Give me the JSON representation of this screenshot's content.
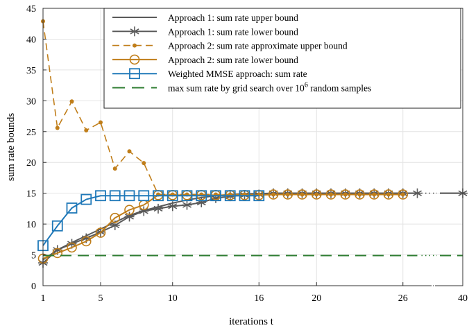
{
  "chart_data": {
    "type": "line",
    "xlabel": "iterations t",
    "ylabel": "sum rate bounds",
    "ylim": [
      0,
      45
    ],
    "yticks": [
      0,
      5,
      10,
      15,
      20,
      25,
      30,
      35,
      40,
      45
    ],
    "xtick_labels": [
      "1",
      "5",
      "10",
      "16",
      "20",
      "26",
      "40"
    ],
    "x_break": {
      "shown_between": 27,
      "and": 40
    },
    "grid": true,
    "legend_position": "top-right",
    "series": [
      {
        "name": "Approach 1: sum rate upper bound",
        "color": "#5a5a5a",
        "dash": "solid",
        "marker": "none",
        "x": [
          1,
          2,
          3,
          4,
          5,
          6,
          7,
          8,
          9,
          10,
          11,
          12,
          13,
          14,
          15,
          16,
          17,
          18,
          19,
          20,
          21,
          22,
          23,
          24,
          25,
          26,
          27
        ],
        "y": [
          4.2,
          5.8,
          7.0,
          8.1,
          9.2,
          10.3,
          11.4,
          12.2,
          12.8,
          13.4,
          13.9,
          14.3,
          14.6,
          14.8,
          14.9,
          14.95,
          15.0,
          15.0,
          15.0,
          15.0,
          15.0,
          15.0,
          15.0,
          15.0,
          15.0,
          15.0,
          15.0
        ],
        "x_after_break": [
          40
        ],
        "y_after_break": [
          15.0
        ]
      },
      {
        "name": "Approach 1: sum rate lower bound",
        "color": "#5a5a5a",
        "dash": "solid",
        "marker": "asterisk",
        "x": [
          1,
          2,
          3,
          4,
          5,
          6,
          7,
          8,
          9,
          10,
          11,
          12,
          13,
          14,
          15,
          16,
          17,
          18,
          19,
          20,
          21,
          22,
          23,
          24,
          25,
          26,
          27
        ],
        "y": [
          3.7,
          5.8,
          6.8,
          7.7,
          8.7,
          9.8,
          11.2,
          12.1,
          12.5,
          12.9,
          13.1,
          13.5,
          14.2,
          14.5,
          14.7,
          14.8,
          15.0,
          15.0,
          15.0,
          15.0,
          15.0,
          15.0,
          15.0,
          15.0,
          15.0,
          15.0,
          15.0
        ],
        "x_after_break": [
          40
        ],
        "y_after_break": [
          15.0
        ]
      },
      {
        "name": "Approach 2: sum rate approximate upper bound",
        "color": "#c07e1a",
        "dash": "dashed",
        "marker": "dot",
        "x": [
          1,
          2,
          3,
          4,
          5,
          6,
          7,
          8,
          9,
          10,
          11,
          12,
          13,
          14,
          15,
          16,
          17,
          18,
          19,
          20,
          21,
          22,
          23,
          24,
          25,
          26
        ],
        "y": [
          42.9,
          25.6,
          29.9,
          25.2,
          26.5,
          19.0,
          21.8,
          19.9,
          14.8,
          14.8,
          14.8,
          14.8,
          14.8,
          14.8,
          14.8,
          14.8,
          14.8,
          14.8,
          14.8,
          14.8,
          14.8,
          14.8,
          14.8,
          14.8,
          14.8,
          14.8
        ]
      },
      {
        "name": "Approach 2: sum rate lower bound",
        "color": "#c07e1a",
        "dash": "solid",
        "marker": "circle",
        "x": [
          1,
          2,
          3,
          4,
          5,
          6,
          7,
          8,
          9,
          10,
          11,
          12,
          13,
          14,
          15,
          16,
          17,
          18,
          19,
          20,
          21,
          22,
          23,
          24,
          25,
          26
        ],
        "y": [
          4.4,
          5.3,
          6.2,
          7.2,
          8.6,
          11.0,
          12.3,
          13.1,
          14.7,
          14.7,
          14.7,
          14.7,
          14.7,
          14.7,
          14.7,
          14.7,
          14.8,
          14.8,
          14.8,
          14.8,
          14.8,
          14.8,
          14.8,
          14.8,
          14.8,
          14.8
        ]
      },
      {
        "name": "Weighted MMSE approach: sum rate",
        "color": "#1f78b8",
        "dash": "solid",
        "marker": "square",
        "x": [
          1,
          2,
          3,
          4,
          5,
          6,
          7,
          8,
          9,
          10,
          11,
          12,
          13,
          14,
          15,
          16
        ],
        "y": [
          6.5,
          9.7,
          12.6,
          14.0,
          14.6,
          14.6,
          14.6,
          14.6,
          14.6,
          14.6,
          14.6,
          14.6,
          14.6,
          14.6,
          14.6,
          14.6
        ]
      },
      {
        "name": "max sum rate by grid search over 10^6 random samples",
        "legend_text": {
          "before": "max sum rate by grid search over 10",
          "sup": "6",
          "after": " random samples"
        },
        "color": "#2e7d32",
        "dash": "longdash",
        "marker": "none",
        "x": [
          1,
          27
        ],
        "y": [
          4.9,
          4.9
        ],
        "x_after_break": [
          40
        ],
        "y_after_break": [
          4.9
        ]
      }
    ]
  }
}
